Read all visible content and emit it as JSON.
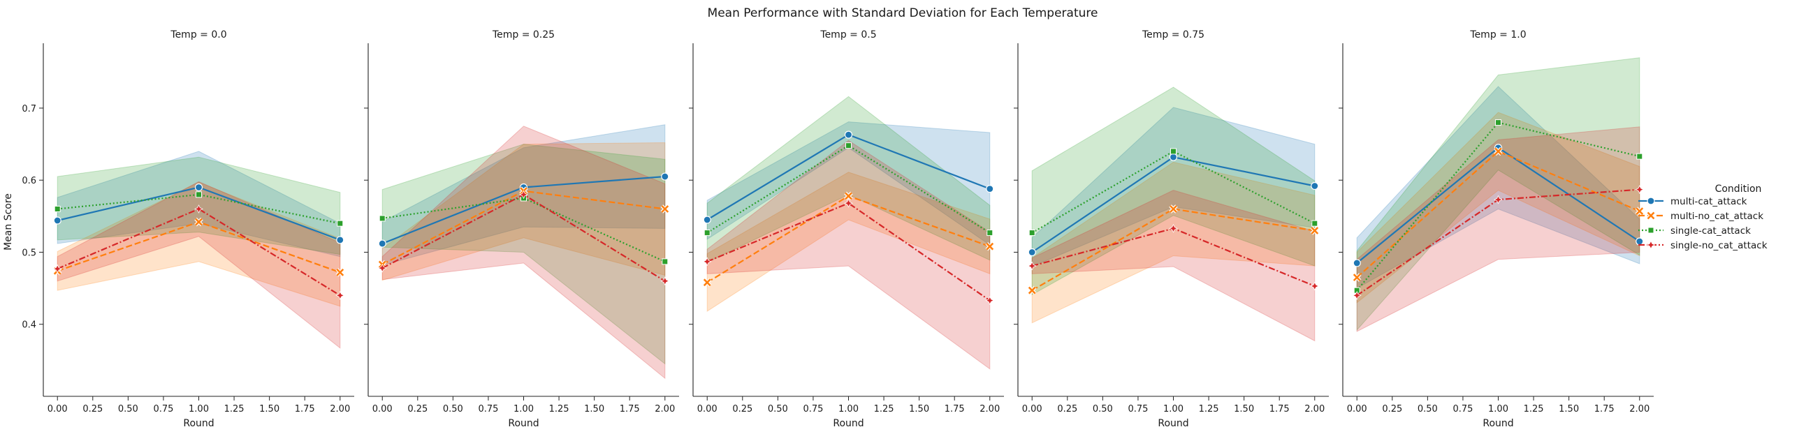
{
  "figure": {
    "suptitle": "Mean Performance with Standard Deviation for Each Temperature",
    "ylabel": "Mean Score",
    "xlabel": "Round",
    "x_ticks": [
      "0.00",
      "0.25",
      "0.50",
      "0.75",
      "1.00",
      "1.25",
      "1.50",
      "1.75",
      "2.00"
    ],
    "y_ticks": [
      "0.4",
      "0.5",
      "0.6",
      "0.7"
    ]
  },
  "legend": {
    "title": "Condition",
    "placement": "right",
    "items": [
      "multi-cat_attack",
      "multi-no_cat_attack",
      "single-cat_attack",
      "single-no_cat_attack"
    ]
  },
  "colors": {
    "multi-cat_attack": "#1f77b4",
    "multi-no_cat_attack": "#ff7f0e",
    "single-cat_attack": "#2ca02c",
    "single-no_cat_attack": "#d62728"
  },
  "chart_data": [
    {
      "type": "line",
      "title": "Temp = 0.0",
      "x": [
        0,
        1,
        2
      ],
      "xlim": [
        -0.1,
        2.1
      ],
      "ylim": [
        0.3,
        0.79
      ],
      "series": [
        {
          "name": "multi-cat_attack",
          "values": [
            0.544,
            0.59,
            0.517
          ],
          "lower": [
            0.512,
            0.54,
            0.494
          ],
          "upper": [
            0.576,
            0.64,
            0.54
          ]
        },
        {
          "name": "multi-no_cat_attack",
          "values": [
            0.474,
            0.542,
            0.472
          ],
          "lower": [
            0.447,
            0.487,
            0.425
          ],
          "upper": [
            0.501,
            0.597,
            0.519
          ]
        },
        {
          "name": "single-cat_attack",
          "values": [
            0.56,
            0.58,
            0.54
          ],
          "lower": [
            0.517,
            0.528,
            0.497
          ],
          "upper": [
            0.605,
            0.632,
            0.583
          ]
        },
        {
          "name": "single-no_cat_attack",
          "values": [
            0.477,
            0.56,
            0.44
          ],
          "lower": [
            0.46,
            0.522,
            0.367
          ],
          "upper": [
            0.494,
            0.598,
            0.513
          ]
        }
      ]
    },
    {
      "type": "line",
      "title": "Temp = 0.25",
      "x": [
        0,
        1,
        2
      ],
      "xlim": [
        -0.1,
        2.1
      ],
      "ylim": [
        0.3,
        0.79
      ],
      "series": [
        {
          "name": "multi-cat_attack",
          "values": [
            0.512,
            0.59,
            0.605
          ],
          "lower": [
            0.482,
            0.535,
            0.533
          ],
          "upper": [
            0.542,
            0.645,
            0.677
          ]
        },
        {
          "name": "multi-no_cat_attack",
          "values": [
            0.483,
            0.585,
            0.56
          ],
          "lower": [
            0.461,
            0.52,
            0.468
          ],
          "upper": [
            0.505,
            0.65,
            0.652
          ]
        },
        {
          "name": "single-cat_attack",
          "values": [
            0.547,
            0.575,
            0.487
          ],
          "lower": [
            0.507,
            0.5,
            0.345
          ],
          "upper": [
            0.587,
            0.65,
            0.629
          ]
        },
        {
          "name": "single-no_cat_attack",
          "values": [
            0.478,
            0.58,
            0.46
          ],
          "lower": [
            0.462,
            0.485,
            0.325
          ],
          "upper": [
            0.494,
            0.675,
            0.595
          ]
        }
      ]
    },
    {
      "type": "line",
      "title": "Temp = 0.5",
      "x": [
        0,
        1,
        2
      ],
      "xlim": [
        -0.1,
        2.1
      ],
      "ylim": [
        0.3,
        0.79
      ],
      "series": [
        {
          "name": "multi-cat_attack",
          "values": [
            0.545,
            0.663,
            0.588
          ],
          "lower": [
            0.518,
            0.645,
            0.51
          ],
          "upper": [
            0.572,
            0.681,
            0.666
          ]
        },
        {
          "name": "multi-no_cat_attack",
          "values": [
            0.458,
            0.578,
            0.508
          ],
          "lower": [
            0.418,
            0.545,
            0.47
          ],
          "upper": [
            0.498,
            0.611,
            0.546
          ]
        },
        {
          "name": "single-cat_attack",
          "values": [
            0.527,
            0.648,
            0.527
          ],
          "lower": [
            0.486,
            0.58,
            0.489
          ],
          "upper": [
            0.568,
            0.716,
            0.565
          ]
        },
        {
          "name": "single-no_cat_attack",
          "values": [
            0.487,
            0.568,
            0.433
          ],
          "lower": [
            0.47,
            0.481,
            0.338
          ],
          "upper": [
            0.504,
            0.655,
            0.528
          ]
        }
      ]
    },
    {
      "type": "line",
      "title": "Temp = 0.75",
      "x": [
        0,
        1,
        2
      ],
      "xlim": [
        -0.1,
        2.1
      ],
      "ylim": [
        0.3,
        0.79
      ],
      "series": [
        {
          "name": "multi-cat_attack",
          "values": [
            0.5,
            0.632,
            0.592
          ],
          "lower": [
            0.48,
            0.563,
            0.534
          ],
          "upper": [
            0.52,
            0.701,
            0.65
          ]
        },
        {
          "name": "multi-no_cat_attack",
          "values": [
            0.447,
            0.56,
            0.53
          ],
          "lower": [
            0.402,
            0.495,
            0.481
          ],
          "upper": [
            0.492,
            0.625,
            0.579
          ]
        },
        {
          "name": "single-cat_attack",
          "values": [
            0.527,
            0.64,
            0.54
          ],
          "lower": [
            0.441,
            0.551,
            0.481
          ],
          "upper": [
            0.613,
            0.729,
            0.599
          ]
        },
        {
          "name": "single-no_cat_attack",
          "values": [
            0.481,
            0.533,
            0.453
          ],
          "lower": [
            0.47,
            0.48,
            0.377
          ],
          "upper": [
            0.492,
            0.586,
            0.529
          ]
        }
      ]
    },
    {
      "type": "line",
      "title": "Temp = 1.0",
      "x": [
        0,
        1,
        2
      ],
      "xlim": [
        -0.1,
        2.1
      ],
      "ylim": [
        0.3,
        0.79
      ],
      "series": [
        {
          "name": "multi-cat_attack",
          "values": [
            0.485,
            0.645,
            0.515
          ],
          "lower": [
            0.45,
            0.56,
            0.484
          ],
          "upper": [
            0.52,
            0.73,
            0.546
          ]
        },
        {
          "name": "multi-no_cat_attack",
          "values": [
            0.465,
            0.64,
            0.557
          ],
          "lower": [
            0.43,
            0.586,
            0.495
          ],
          "upper": [
            0.5,
            0.694,
            0.619
          ]
        },
        {
          "name": "single-cat_attack",
          "values": [
            0.447,
            0.68,
            0.633
          ],
          "lower": [
            0.392,
            0.614,
            0.496
          ],
          "upper": [
            0.502,
            0.746,
            0.77
          ]
        },
        {
          "name": "single-no_cat_attack",
          "values": [
            0.44,
            0.573,
            0.587
          ],
          "lower": [
            0.39,
            0.49,
            0.5
          ],
          "upper": [
            0.49,
            0.656,
            0.674
          ]
        }
      ]
    }
  ]
}
